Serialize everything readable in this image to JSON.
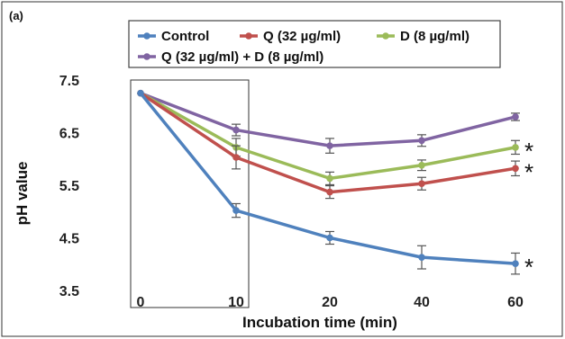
{
  "chart_data": {
    "type": "line",
    "panel_label": "(a)",
    "xlabel": "Incubation time (min)",
    "ylabel": "pH value",
    "categories": [
      "0",
      "10",
      "20",
      "40",
      "60"
    ],
    "yticks": [
      "7.5",
      "6.5",
      "5.5",
      "4.5",
      "3.5"
    ],
    "ylim": [
      3.5,
      7.5
    ],
    "grid": false,
    "legend_position": "top",
    "series": [
      {
        "name": "Control",
        "color": "#4f81bd",
        "values": [
          7.25,
          5.02,
          4.5,
          4.13,
          4.01
        ],
        "errors": [
          0.05,
          0.13,
          0.12,
          0.22,
          0.2
        ],
        "asterisk": "*"
      },
      {
        "name": "Q (32 µg/ml)",
        "color": "#c0504d",
        "values": [
          7.25,
          6.03,
          5.37,
          5.53,
          5.82
        ],
        "errors": [
          0.05,
          0.22,
          0.12,
          0.12,
          0.14
        ],
        "asterisk": "*"
      },
      {
        "name": "D (8 µg/ml)",
        "color": "#9bbb59",
        "values": [
          7.25,
          6.22,
          5.63,
          5.88,
          6.22
        ],
        "errors": [
          0.05,
          0.17,
          0.12,
          0.1,
          0.13
        ],
        "asterisk": "*"
      },
      {
        "name": "Q (32 µg/ml) + D (8 µg/ml)",
        "color": "#8064a2",
        "values": [
          7.25,
          6.55,
          6.25,
          6.35,
          6.8
        ],
        "errors": [
          0.05,
          0.11,
          0.14,
          0.11,
          0.07
        ],
        "asterisk": ""
      }
    ]
  }
}
